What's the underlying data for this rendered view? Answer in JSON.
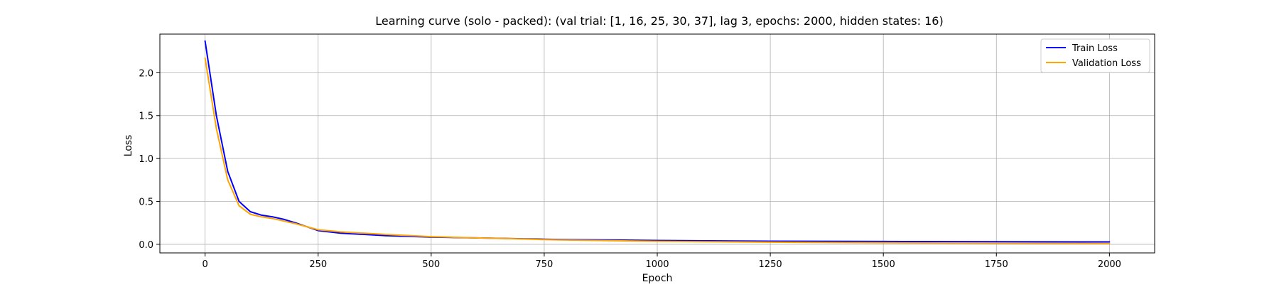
{
  "chart_data": {
    "type": "line",
    "title": "Learning curve (solo - packed): (val trial: [1, 16, 25, 30, 37], lag 3, epochs: 2000, hidden states: 16)",
    "xlabel": "Epoch",
    "ylabel": "Loss",
    "xlim": [
      -100,
      2100
    ],
    "ylim": [
      -0.1,
      2.45
    ],
    "xticks": [
      0,
      250,
      500,
      750,
      1000,
      1250,
      1500,
      1750,
      2000
    ],
    "xtick_labels": [
      "0",
      "250",
      "500",
      "750",
      "1000",
      "1250",
      "1500",
      "1750",
      "2000"
    ],
    "yticks": [
      0.0,
      0.5,
      1.0,
      1.5,
      2.0
    ],
    "ytick_labels": [
      "0.0",
      "0.5",
      "1.0",
      "1.5",
      "2.0"
    ],
    "grid": true,
    "legend_position": "top-right",
    "x": [
      0,
      25,
      50,
      75,
      100,
      125,
      150,
      175,
      200,
      250,
      300,
      400,
      500,
      600,
      700,
      750,
      800,
      1000,
      1250,
      1500,
      1750,
      2000
    ],
    "series": [
      {
        "name": "Train Loss",
        "color": "#0000ff",
        "values": [
          2.37,
          1.5,
          0.85,
          0.5,
          0.38,
          0.34,
          0.32,
          0.29,
          0.25,
          0.16,
          0.13,
          0.1,
          0.085,
          0.075,
          0.065,
          0.06,
          0.055,
          0.045,
          0.037,
          0.033,
          0.03,
          0.028
        ]
      },
      {
        "name": "Validation Loss",
        "color": "#ffa500",
        "values": [
          2.17,
          1.35,
          0.75,
          0.45,
          0.35,
          0.32,
          0.3,
          0.27,
          0.24,
          0.17,
          0.145,
          0.115,
          0.09,
          0.075,
          0.062,
          0.055,
          0.05,
          0.035,
          0.025,
          0.018,
          0.013,
          0.01
        ]
      }
    ]
  }
}
